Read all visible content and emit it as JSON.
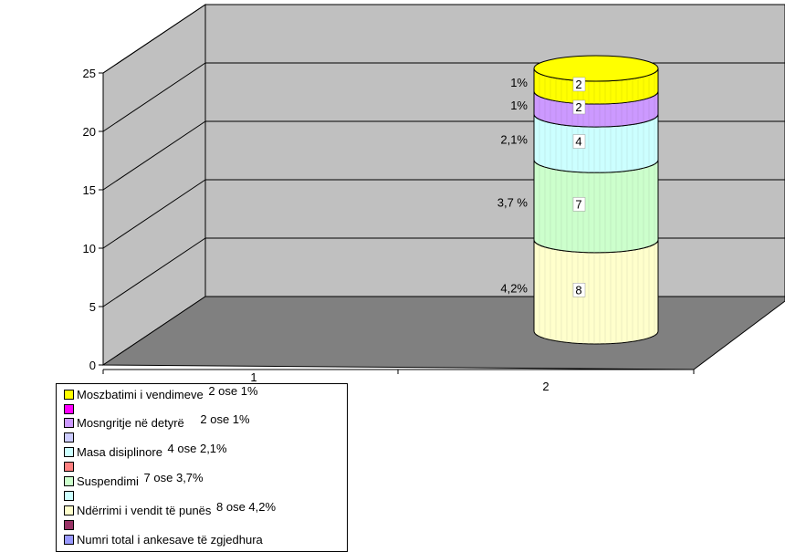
{
  "chart_data": {
    "type": "bar",
    "categories": [
      "1",
      "2"
    ],
    "ylim": [
      0,
      25
    ],
    "yticks": [
      0,
      5,
      10,
      15,
      20,
      25
    ],
    "grid": true,
    "stacked": true,
    "series": [
      {
        "name": "Ndërrimi i vendit të punës",
        "values": [
          0,
          8
        ],
        "percent_label": "4,2%",
        "color": "#FFFFCC",
        "legend_value": "8 ose 4,2%"
      },
      {
        "name": "Suspendimi",
        "values": [
          0,
          7
        ],
        "percent_label": "3,7 %",
        "color": "#CCFFCC",
        "legend_value": "7 ose 3,7%"
      },
      {
        "name": "Masa disiplinore",
        "values": [
          0,
          4
        ],
        "percent_label": "2,1%",
        "color": "#CCFFFF",
        "legend_value": "4 ose 2,1%"
      },
      {
        "name": "Mosngritje në detyrë",
        "values": [
          0,
          2
        ],
        "percent_label": "1%",
        "color": "#CC99FF",
        "legend_value": "2 ose 1%"
      },
      {
        "name": "Moszbatimi i vendimeve",
        "values": [
          0,
          2
        ],
        "percent_label": "1%",
        "color": "#FFFF00",
        "legend_value": "2 ose 1%"
      }
    ],
    "legend": {
      "placement": "bottom-left",
      "entries": [
        {
          "label": "Moszbatimi i vendimeve",
          "color": "#FFFF00",
          "value": "2 ose 1%"
        },
        {
          "label": "",
          "color": "#FF00FF",
          "value": ""
        },
        {
          "label": "Mosngritje në detyrë",
          "color": "#CC99FF",
          "value": "2 ose 1%"
        },
        {
          "label": "",
          "color": "#CCCCFF",
          "value": ""
        },
        {
          "label": "Masa disiplinore",
          "color": "#CCFFFF",
          "value": "4 ose 2,1%"
        },
        {
          "label": "",
          "color": "#FF8080",
          "value": ""
        },
        {
          "label": "Suspendimi",
          "color": "#CCFFCC",
          "value": "7 ose 3,7%"
        },
        {
          "label": "",
          "color": "#CCFFFF",
          "value": ""
        },
        {
          "label": "Ndërrimi i vendit të punës",
          "color": "#FFFFCC",
          "value": "8 ose 4,2%"
        },
        {
          "label": "",
          "color": "#993366",
          "value": ""
        },
        {
          "label": "Numri total i ankesave të zgjedhura",
          "color": "#9999FF",
          "value": ""
        }
      ]
    },
    "colors": {
      "wall": "#C0C0C0",
      "floor": "#808080",
      "grid": "#000000"
    }
  }
}
